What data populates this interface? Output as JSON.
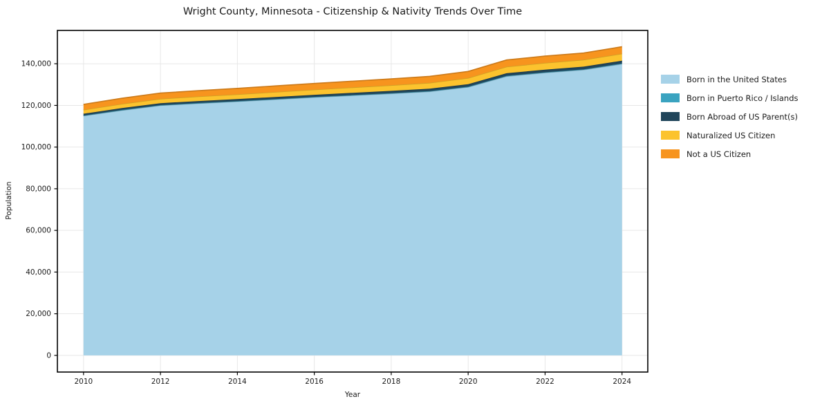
{
  "chart_data": {
    "type": "area",
    "stacked": true,
    "title": "Wright County, Minnesota - Citizenship & Nativity Trends Over Time",
    "xlabel": "Year",
    "ylabel": "Population",
    "grid": true,
    "legend_position": "right-outside",
    "xlim": [
      2009.32,
      2024.67
    ],
    "ylim": [
      -8000,
      156000
    ],
    "x": [
      2010,
      2011,
      2012,
      2013,
      2014,
      2015,
      2016,
      2017,
      2018,
      2019,
      2020,
      2021,
      2022,
      2023,
      2024
    ],
    "series": [
      {
        "name": "Born in the United States",
        "color": "#a6d2e8",
        "values": [
          115000,
          117700,
          120000,
          121000,
          121900,
          122900,
          123900,
          124800,
          125700,
          126700,
          128800,
          134000,
          135700,
          137100,
          139900
        ]
      },
      {
        "name": "Born in Puerto Rico / Islands",
        "color": "#3aa3c0",
        "values": [
          150,
          160,
          160,
          170,
          170,
          180,
          180,
          190,
          190,
          200,
          200,
          210,
          220,
          230,
          250
        ]
      },
      {
        "name": "Born Abroad of US Parent(s)",
        "color": "#20455a",
        "values": [
          850,
          880,
          900,
          920,
          950,
          980,
          1000,
          1050,
          1100,
          1150,
          1200,
          1250,
          1270,
          1280,
          1300
        ]
      },
      {
        "name": "Naturalized US Citizen",
        "color": "#fcc32e",
        "values": [
          1900,
          2000,
          2100,
          2200,
          2300,
          2400,
          2500,
          2600,
          2700,
          2800,
          2950,
          3100,
          3200,
          3300,
          3400
        ]
      },
      {
        "name": "Not a US Citizen",
        "color": "#f7941e",
        "values": [
          2600,
          2700,
          2750,
          2800,
          2850,
          2900,
          2950,
          3000,
          3050,
          3100,
          3150,
          3250,
          3300,
          3250,
          3300
        ]
      }
    ],
    "x_ticks": {
      "values": [
        2010,
        2012,
        2014,
        2016,
        2018,
        2020,
        2022,
        2024
      ],
      "labels": [
        "2010",
        "2012",
        "2014",
        "2016",
        "2018",
        "2020",
        "2022",
        "2024"
      ]
    },
    "y_ticks": {
      "values": [
        0,
        20000,
        40000,
        60000,
        80000,
        100000,
        120000,
        140000
      ],
      "labels": [
        "0",
        "20,000",
        "40,000",
        "60,000",
        "80,000",
        "100,000",
        "120,000",
        "140,000"
      ]
    },
    "colors": {
      "gridline": "#e7e7e7",
      "spine": "#000000",
      "tick_label": "#1a1a1a"
    }
  }
}
